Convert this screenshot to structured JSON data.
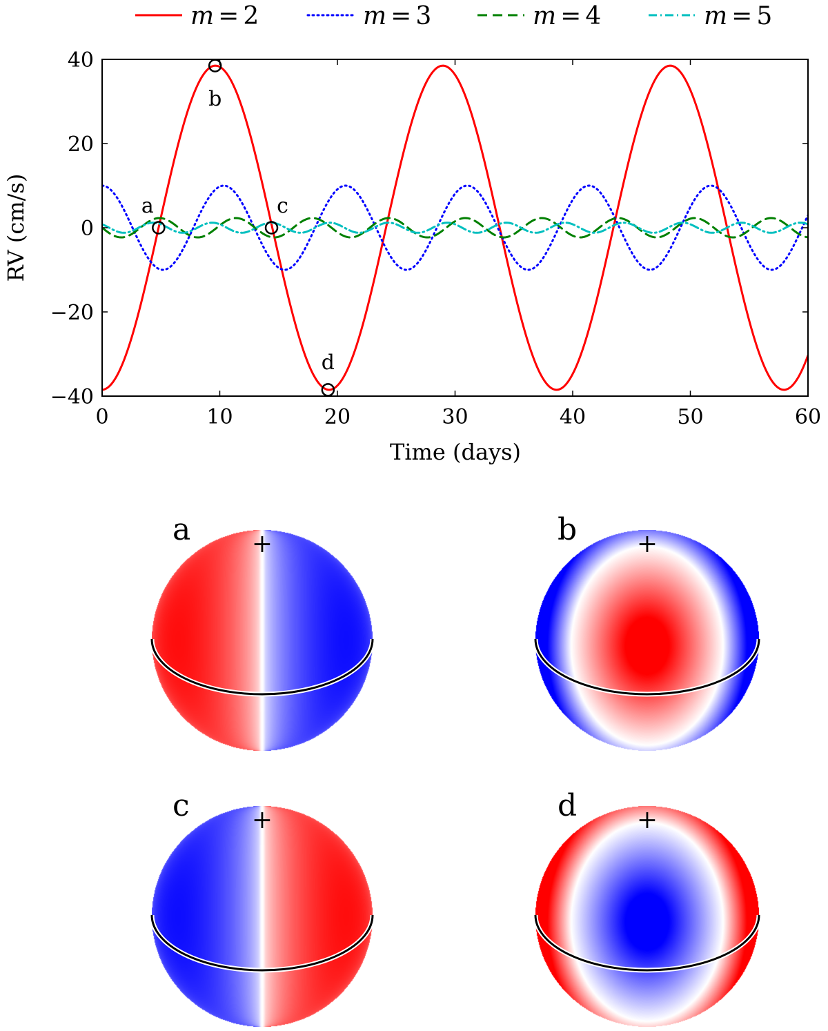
{
  "chart_data": {
    "type": "line",
    "xlabel": "Time (days)",
    "ylabel": "RV (cm/s)",
    "xlim": [
      0,
      60
    ],
    "ylim": [
      -40,
      40
    ],
    "xticks": [
      0,
      10,
      20,
      30,
      40,
      50,
      60
    ],
    "xtick_labels": [
      "0",
      "10",
      "20",
      "30",
      "40",
      "50",
      "60"
    ],
    "yticks": [
      -40,
      -20,
      0,
      20,
      40
    ],
    "ytick_labels": [
      "−40",
      "−20",
      "0",
      "20",
      "40"
    ],
    "grid": false,
    "legend_position": "top",
    "series": [
      {
        "name": "m = 2",
        "legend_var": "m",
        "legend_eq": "=",
        "legend_val": "2",
        "color": "#ff0000",
        "style": "solid",
        "amplitude": 38.5,
        "period_days": 19.33,
        "phase_days": 4.8,
        "sign": 1
      },
      {
        "name": "m = 3",
        "legend_var": "m",
        "legend_eq": "=",
        "legend_val": "3",
        "color": "#0000ff",
        "style": "dotted",
        "amplitude": 10,
        "period_days": 10.35,
        "phase_days": 2.58,
        "sign": -1
      },
      {
        "name": "m = 4",
        "legend_var": "m",
        "legend_eq": "=",
        "legend_val": "4",
        "color": "#008000",
        "style": "dashed",
        "amplitude": 2.3,
        "period_days": 6.5,
        "phase_days": 0.0,
        "sign": -1
      },
      {
        "name": "m = 5",
        "legend_var": "m",
        "legend_eq": "=",
        "legend_val": "5",
        "color": "#00bfbf",
        "style": "dashdot",
        "amplitude": 1.2,
        "period_days": 5.0,
        "phase_days": 0.6,
        "sign": -1
      }
    ],
    "markers": [
      {
        "label": "a",
        "x": 4.8,
        "y": 0,
        "label_pos": "above-left"
      },
      {
        "label": "b",
        "x": 9.6,
        "y": 38.5,
        "label_pos": "below"
      },
      {
        "label": "c",
        "x": 14.4,
        "y": 0,
        "label_pos": "above-right"
      },
      {
        "label": "d",
        "x": 19.2,
        "y": -38.5,
        "label_pos": "above"
      }
    ]
  },
  "panels": [
    {
      "letter": "a",
      "pole_mark": "+",
      "pattern": "a"
    },
    {
      "letter": "b",
      "pole_mark": "+",
      "pattern": "b"
    },
    {
      "letter": "c",
      "pole_mark": "+",
      "pattern": "c"
    },
    {
      "letter": "d",
      "pole_mark": "+",
      "pattern": "d"
    }
  ],
  "colors": {
    "red": "#ff0000",
    "blue": "#0000ff",
    "white": "#ffffff"
  }
}
